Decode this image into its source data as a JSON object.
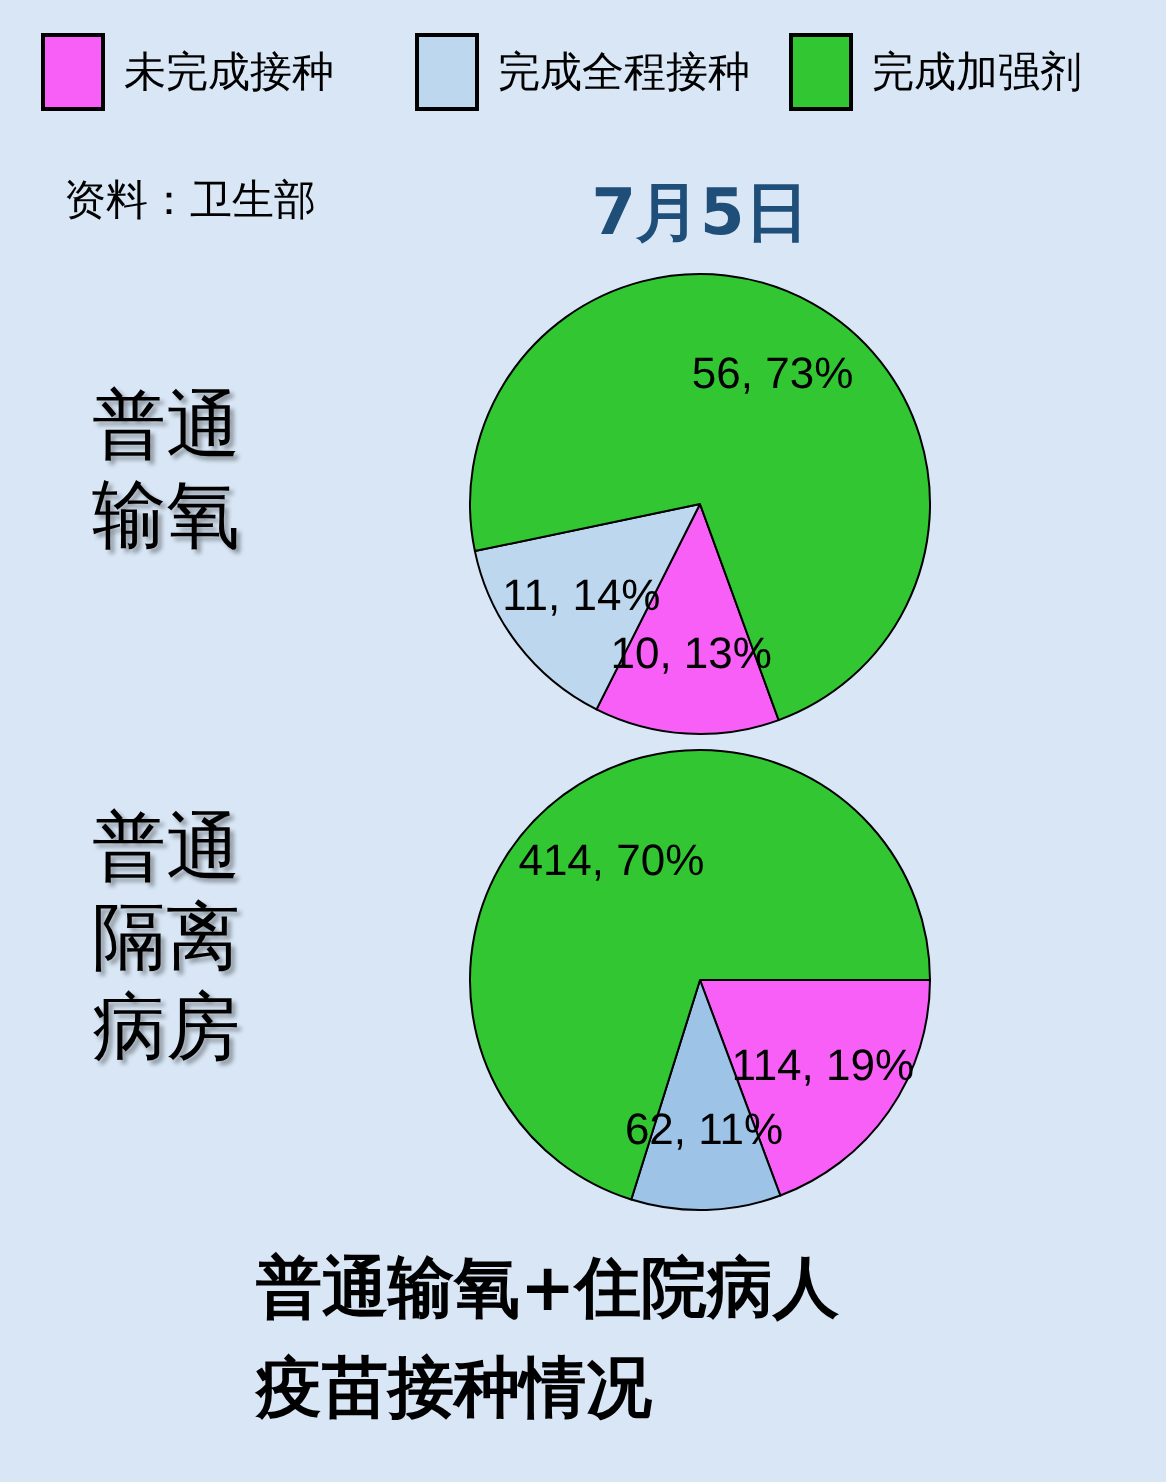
{
  "chart_data": [
    {
      "type": "pie",
      "subtitle": "7月5日",
      "annotations": [
        "资料：卫生部"
      ],
      "categories": [
        "未完成接种",
        "完成全程接种",
        "完成加强剂"
      ],
      "legend": "top",
      "series": [
        {
          "name": "普通输氧",
          "values": [
            10,
            11,
            56
          ],
          "colors": [
            "#f75ff7",
            "#bdd7ee",
            "#33c633"
          ],
          "value_labels": [
            "10, 13%",
            "11, 14%",
            "56, 73%"
          ]
        },
        {
          "name": "普通隔离病房",
          "values": [
            114,
            62,
            414
          ],
          "colors": [
            "#f75ff7",
            "#9dc3e6",
            "#33c633"
          ],
          "value_labels": [
            "114, 19%",
            "62, 11%",
            "414, 70%"
          ]
        }
      ]
    },
    {
      "type": "other",
      "title": "普通输氧+住院病人疫苗接种情况"
    }
  ]
}
